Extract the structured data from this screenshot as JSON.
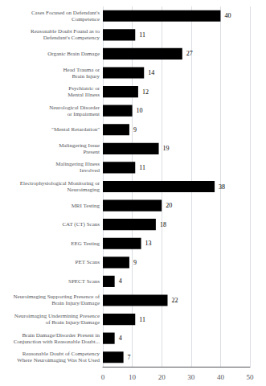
{
  "chart_data": {
    "type": "bar",
    "orientation": "horizontal",
    "categories": [
      "Cases Focused on Defendant's\nCompetence",
      "Reasonable Doubt Found as to\nDefendant's Competency",
      "Organic Brain Damage",
      "Head Trauma or\nBrain Injury",
      "Psychiatric or\nMental Illness",
      "Neurological Disorder\nor Impairment",
      "\"Mental Retardation\"",
      "Malingering Issue\nPresent",
      "Malingering Illness\nInvolved",
      "Electrophysiological Monitoring or\nNeuroimaging",
      "MRI Testing",
      "CAT (CT) Scans",
      "EEG Testing",
      "PET Scans",
      "SPECT Scans",
      "Neuroimaging Supporting Presence of\nBrain Injury/Damage",
      "Neuroimaging Undermining Presence\nof Brain Injury/Damage",
      "Brain Damage/Disorder Present in\nConjunction with Reasonable Doubt...",
      "Reasonable Doubt of Competency\nWhere Neuroimaging Was Not Used"
    ],
    "values": [
      40,
      11,
      27,
      14,
      12,
      10,
      9,
      19,
      11,
      38,
      20,
      18,
      13,
      9,
      4,
      22,
      11,
      4,
      7
    ],
    "color": "#000000",
    "xlim": [
      0,
      50
    ],
    "xticks": [
      0,
      10,
      20,
      30,
      40,
      50
    ],
    "grid": true,
    "data_labels": true
  }
}
